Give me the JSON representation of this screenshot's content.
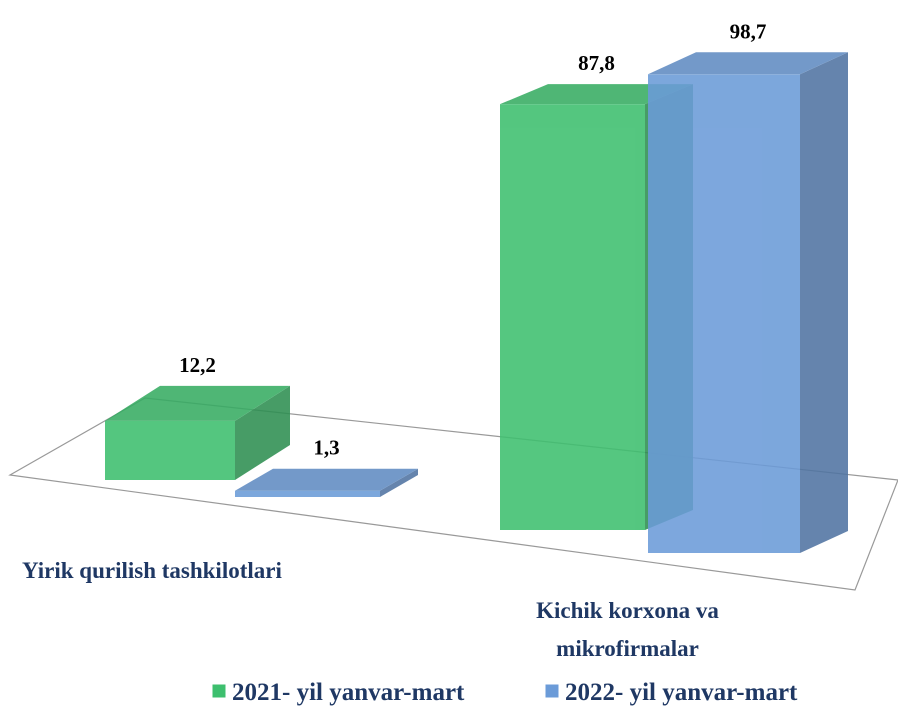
{
  "chart_data": {
    "type": "bar3d",
    "categories": [
      "Yirik qurilish tashkilotlari",
      "Kichik korxona va mikrofirmalar"
    ],
    "series": [
      {
        "name": "2021- yil yanvar-mart",
        "color": "#3dbf6e",
        "values": [
          12.2,
          87.8
        ],
        "value_labels": [
          "12,2",
          "87,8"
        ]
      },
      {
        "name": "2022- yil yanvar-mart",
        "color": "#6b9bd8",
        "values": [
          1.3,
          98.7
        ],
        "value_labels": [
          "1,3",
          "98,7"
        ]
      }
    ],
    "legend": "bottom"
  }
}
